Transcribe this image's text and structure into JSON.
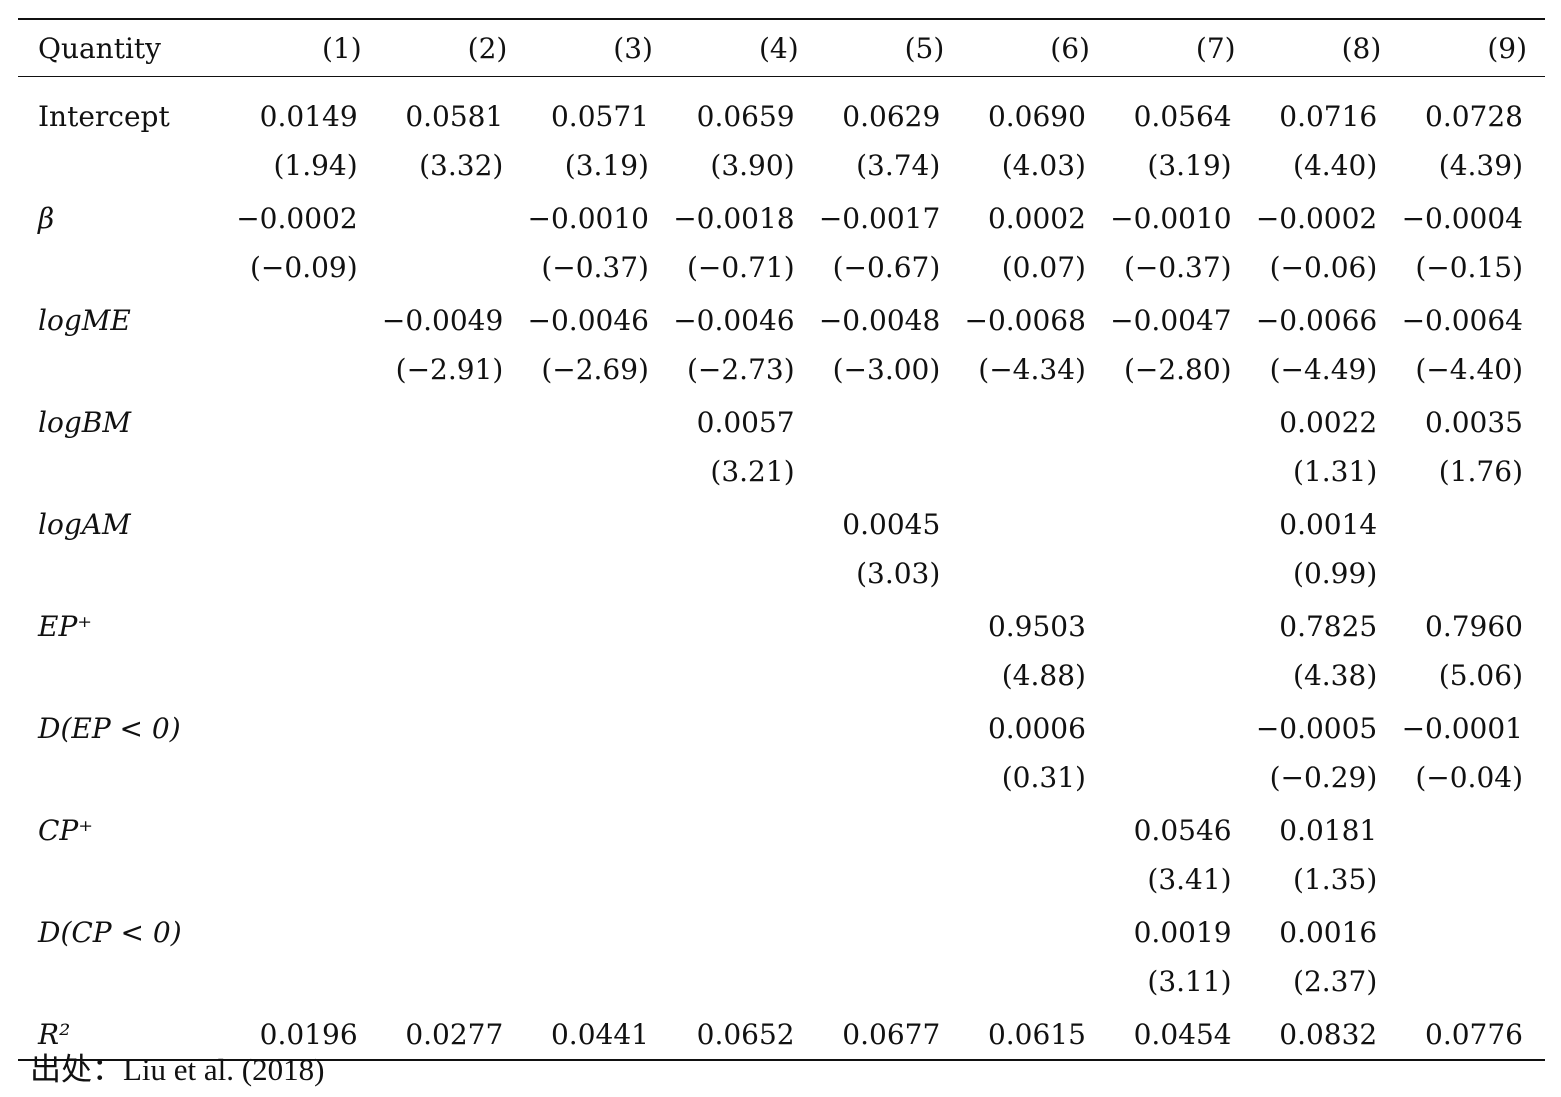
{
  "table": {
    "columns": [
      "Quantity",
      "(1)",
      "(2)",
      "(3)",
      "(4)",
      "(5)",
      "(6)",
      "(7)",
      "(8)",
      "(9)"
    ],
    "rows": [
      {
        "label": "Intercept",
        "italic": false,
        "coef": [
          "0.0149",
          "0.0581",
          "0.0571",
          "0.0659",
          "0.0629",
          "0.0690",
          "0.0564",
          "0.0716",
          "0.0728"
        ],
        "tstat": [
          "(1.94)",
          "(3.32)",
          "(3.19)",
          "(3.90)",
          "(3.74)",
          "(4.03)",
          "(3.19)",
          "(4.40)",
          "(4.39)"
        ]
      },
      {
        "label": "β",
        "italic": true,
        "coef": [
          "−0.0002",
          "",
          "−0.0010",
          "−0.0018",
          "−0.0017",
          "0.0002",
          "−0.0010",
          "−0.0002",
          "−0.0004"
        ],
        "tstat": [
          "(−0.09)",
          "",
          "(−0.37)",
          "(−0.71)",
          "(−0.67)",
          "(0.07)",
          "(−0.37)",
          "(−0.06)",
          "(−0.15)"
        ]
      },
      {
        "label": "logME",
        "italic": true,
        "coef": [
          "",
          "−0.0049",
          "−0.0046",
          "−0.0046",
          "−0.0048",
          "−0.0068",
          "−0.0047",
          "−0.0066",
          "−0.0064"
        ],
        "tstat": [
          "",
          "(−2.91)",
          "(−2.69)",
          "(−2.73)",
          "(−3.00)",
          "(−4.34)",
          "(−2.80)",
          "(−4.49)",
          "(−4.40)"
        ]
      },
      {
        "label": "logBM",
        "italic": true,
        "coef": [
          "",
          "",
          "",
          "0.0057",
          "",
          "",
          "",
          "0.0022",
          "0.0035"
        ],
        "tstat": [
          "",
          "",
          "",
          "(3.21)",
          "",
          "",
          "",
          "(1.31)",
          "(1.76)"
        ]
      },
      {
        "label": "logAM",
        "italic": true,
        "coef": [
          "",
          "",
          "",
          "",
          "0.0045",
          "",
          "",
          "0.0014",
          ""
        ],
        "tstat": [
          "",
          "",
          "",
          "",
          "(3.03)",
          "",
          "",
          "(0.99)",
          ""
        ]
      },
      {
        "label": "EP⁺",
        "italic": true,
        "coef": [
          "",
          "",
          "",
          "",
          "",
          "0.9503",
          "",
          "0.7825",
          "0.7960"
        ],
        "tstat": [
          "",
          "",
          "",
          "",
          "",
          "(4.88)",
          "",
          "(4.38)",
          "(5.06)"
        ]
      },
      {
        "label": "D(EP < 0)",
        "italic": true,
        "coef": [
          "",
          "",
          "",
          "",
          "",
          "0.0006",
          "",
          "−0.0005",
          "−0.0001"
        ],
        "tstat": [
          "",
          "",
          "",
          "",
          "",
          "(0.31)",
          "",
          "(−0.29)",
          "(−0.04)"
        ]
      },
      {
        "label": "CP⁺",
        "italic": true,
        "coef": [
          "",
          "",
          "",
          "",
          "",
          "",
          "0.0546",
          "0.0181",
          ""
        ],
        "tstat": [
          "",
          "",
          "",
          "",
          "",
          "",
          "(3.41)",
          "(1.35)",
          ""
        ]
      },
      {
        "label": "D(CP < 0)",
        "italic": true,
        "coef": [
          "",
          "",
          "",
          "",
          "",
          "",
          "0.0019",
          "0.0016",
          ""
        ],
        "tstat": [
          "",
          "",
          "",
          "",
          "",
          "",
          "(3.11)",
          "(2.37)",
          ""
        ]
      }
    ],
    "r2": {
      "label": "R²",
      "italic": true,
      "values": [
        "0.0196",
        "0.0277",
        "0.0441",
        "0.0652",
        "0.0677",
        "0.0615",
        "0.0454",
        "0.0832",
        "0.0776"
      ]
    }
  },
  "source": "出处：Liu et al. (2018)"
}
